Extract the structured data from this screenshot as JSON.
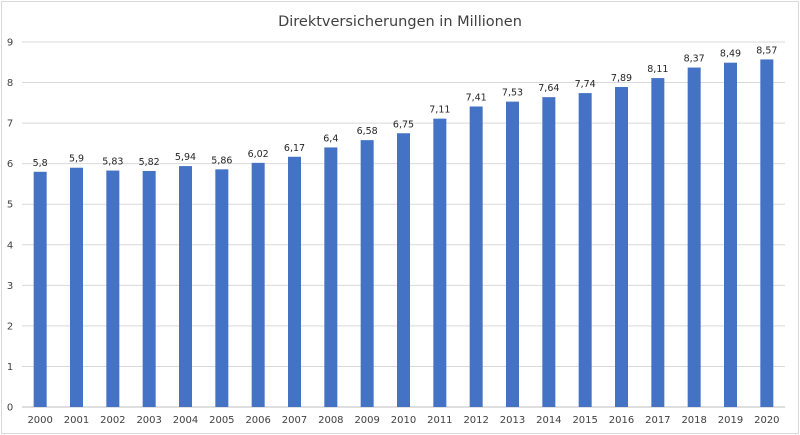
{
  "chart_data": {
    "type": "bar",
    "title": "Direktversicherungen in Millionen",
    "categories": [
      "2000",
      "2001",
      "2002",
      "2003",
      "2004",
      "2005",
      "2006",
      "2007",
      "2008",
      "2009",
      "2010",
      "2011",
      "2012",
      "2013",
      "2014",
      "2015",
      "2016",
      "2017",
      "2018",
      "2019",
      "2020"
    ],
    "values": [
      5.8,
      5.9,
      5.83,
      5.82,
      5.94,
      5.86,
      6.02,
      6.17,
      6.4,
      6.58,
      6.75,
      7.11,
      7.41,
      7.53,
      7.64,
      7.74,
      7.89,
      8.11,
      8.37,
      8.49,
      8.57
    ],
    "data_labels": [
      "5,8",
      "5,9",
      "5,83",
      "5,82",
      "5,94",
      "5,86",
      "6,02",
      "6,17",
      "6,4",
      "6,58",
      "6,75",
      "7,11",
      "7,41",
      "7,53",
      "7,64",
      "7,74",
      "7,89",
      "8,11",
      "8,37",
      "8,49",
      "8,57"
    ],
    "yticks": [
      "0",
      "1",
      "2",
      "3",
      "4",
      "5",
      "6",
      "7",
      "8",
      "9"
    ],
    "ylim": [
      0,
      9
    ],
    "xlabel": "",
    "ylabel": "",
    "grid": true,
    "legend": "none",
    "bar_color": "#4472c4"
  }
}
